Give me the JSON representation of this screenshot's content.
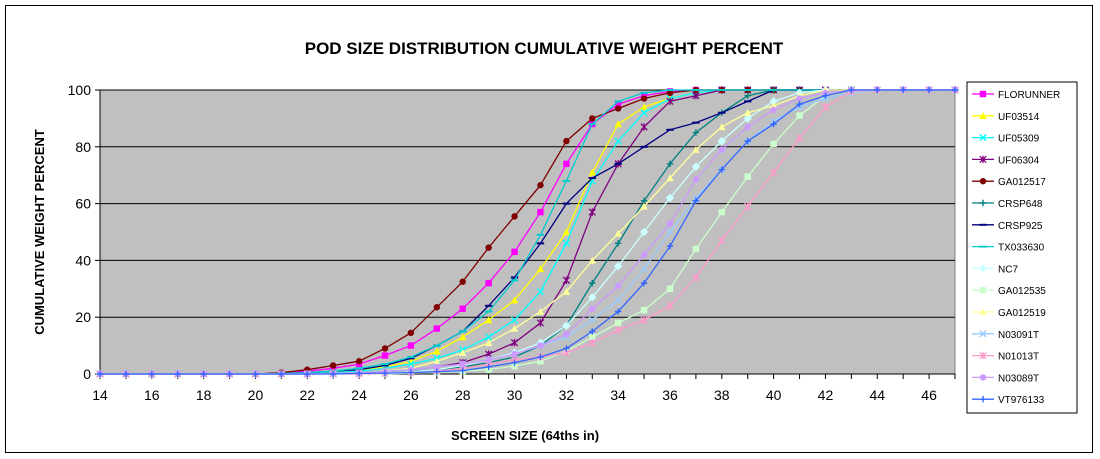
{
  "chart_data": {
    "type": "line",
    "title": "POD SIZE DISTRIBUTION CUMULATIVE WEIGHT PERCENT",
    "xlabel": "SCREEN SIZE (64ths in)",
    "ylabel": "CUMULATIVE WEIGHT PERCENT",
    "xlim": [
      14,
      47
    ],
    "ylim": [
      0,
      100
    ],
    "x_ticks": [
      14,
      16,
      18,
      20,
      22,
      24,
      26,
      28,
      30,
      32,
      34,
      36,
      38,
      40,
      42,
      44,
      46
    ],
    "y_ticks": [
      0,
      20,
      40,
      60,
      80,
      100
    ],
    "grid": "horizontal",
    "plot_background": "#c0c0c0",
    "legend_position": "right",
    "x": [
      14,
      15,
      16,
      17,
      18,
      19,
      20,
      21,
      22,
      23,
      24,
      25,
      26,
      27,
      28,
      29,
      30,
      31,
      32,
      33,
      34,
      35,
      36,
      37,
      38,
      39,
      40,
      41,
      42,
      43,
      44,
      45,
      46,
      47
    ],
    "series": [
      {
        "name": "FLORUNNER",
        "color": "#ff00ff",
        "marker": "square",
        "values": [
          0,
          0,
          0,
          0,
          0,
          0,
          0,
          0.3,
          1,
          2,
          3.5,
          6.5,
          10,
          16,
          23,
          32,
          43,
          57,
          74,
          88,
          95,
          98,
          99.5,
          100,
          100,
          100,
          100,
          100,
          100,
          100,
          100,
          100,
          100,
          100
        ]
      },
      {
        "name": "UF03514",
        "color": "#ffff00",
        "marker": "triangle",
        "values": [
          0,
          0,
          0,
          0,
          0,
          0,
          0,
          0,
          0.3,
          0.6,
          1.2,
          2.5,
          4.5,
          8,
          13,
          19,
          26,
          37,
          50,
          71,
          88,
          94,
          97,
          99,
          100,
          100,
          100,
          100,
          100,
          100,
          100,
          100,
          100,
          100
        ]
      },
      {
        "name": "UF05309",
        "color": "#00ffff",
        "marker": "x",
        "values": [
          0,
          0,
          0,
          0,
          0,
          0,
          0,
          0,
          0.2,
          0.5,
          1,
          2,
          3.5,
          5.5,
          8.5,
          13,
          19,
          29,
          46,
          68,
          82,
          92,
          97,
          99,
          100,
          100,
          100,
          100,
          100,
          100,
          100,
          100,
          100,
          100
        ]
      },
      {
        "name": "UF06304",
        "color": "#800080",
        "marker": "star",
        "values": [
          0,
          0,
          0,
          0,
          0,
          0,
          0,
          0,
          0,
          0.2,
          0.5,
          1,
          1.5,
          2.5,
          4,
          7,
          11,
          18,
          33,
          57,
          74,
          87,
          96,
          98,
          100,
          100,
          100,
          100,
          100,
          100,
          100,
          100,
          100,
          100
        ]
      },
      {
        "name": "GA012517",
        "color": "#800000",
        "marker": "circle",
        "values": [
          0,
          0,
          0,
          0,
          0,
          0,
          0,
          0.5,
          1.5,
          3,
          4.5,
          9,
          14.5,
          23.5,
          32.5,
          44.5,
          55.5,
          66.5,
          82,
          90,
          93.5,
          97,
          99,
          100,
          100,
          100,
          100,
          100,
          100,
          100,
          100,
          100,
          100,
          100
        ]
      },
      {
        "name": "CRSP648",
        "color": "#008080",
        "marker": "plus",
        "values": [
          0,
          0,
          0,
          0,
          0,
          0,
          0,
          0,
          0,
          0.2,
          0.3,
          0.5,
          1,
          1.5,
          2.5,
          4,
          6,
          10,
          17,
          32,
          46,
          61,
          74,
          85,
          92,
          98,
          100,
          100,
          100,
          100,
          100,
          100,
          100,
          100
        ]
      },
      {
        "name": "CRSP925",
        "color": "#000080",
        "marker": "dash",
        "values": [
          0,
          0,
          0,
          0,
          0,
          0,
          0,
          0.2,
          0.5,
          1,
          1.5,
          3,
          5.5,
          10,
          15,
          24,
          34,
          46,
          60,
          69,
          74,
          80,
          86,
          88.5,
          92,
          96,
          100,
          100,
          100,
          100,
          100,
          100,
          100,
          100
        ]
      },
      {
        "name": "TX033630",
        "color": "#00cccc",
        "marker": "dash",
        "values": [
          0,
          0,
          0,
          0,
          0,
          0,
          0,
          0.2,
          0.5,
          1,
          2,
          3.5,
          6,
          10,
          15,
          22,
          33,
          49,
          68,
          88,
          96,
          99,
          100,
          100,
          100,
          100,
          100,
          100,
          100,
          100,
          100,
          100,
          100,
          100
        ]
      },
      {
        "name": "NC7",
        "color": "#ccffff",
        "marker": "diamond",
        "values": [
          0,
          0,
          0,
          0,
          0,
          0,
          0,
          0,
          0,
          0,
          0.2,
          0.4,
          0.8,
          1.5,
          3,
          5,
          7.5,
          11,
          17,
          27,
          38,
          50,
          62,
          73,
          82,
          90,
          96,
          99,
          100,
          100,
          100,
          100,
          100,
          100
        ]
      },
      {
        "name": "GA012535",
        "color": "#ccffcc",
        "marker": "square",
        "values": [
          0,
          0,
          0,
          0,
          0,
          0,
          0,
          0,
          0,
          0,
          0,
          0,
          0.3,
          0.6,
          1,
          1.6,
          2.8,
          4.5,
          8,
          13,
          18,
          22.5,
          30,
          44,
          57,
          69.5,
          81,
          91,
          98,
          100,
          100,
          100,
          100,
          100
        ]
      },
      {
        "name": "GA012519",
        "color": "#ffff99",
        "marker": "triangle",
        "values": [
          0,
          0,
          0,
          0,
          0,
          0,
          0,
          0,
          0,
          0.2,
          0.5,
          1,
          2,
          4.5,
          7.5,
          11,
          16,
          22,
          29,
          40,
          49.5,
          59,
          69,
          79,
          87,
          92,
          94.5,
          98,
          100,
          100,
          100,
          100,
          100,
          100
        ]
      },
      {
        "name": "N03091T",
        "color": "#99ccff",
        "marker": "x",
        "values": [
          0,
          0,
          0,
          0,
          0,
          0,
          0,
          0,
          0,
          0.2,
          0.5,
          1,
          1.5,
          2.5,
          3.5,
          5,
          7,
          10,
          13,
          19,
          26,
          37,
          50,
          62,
          72,
          82,
          89,
          94,
          97,
          99,
          100,
          100,
          100,
          100
        ]
      },
      {
        "name": "N01013T",
        "color": "#ff99cc",
        "marker": "star",
        "values": [
          0,
          0,
          0,
          0,
          0,
          0,
          0,
          0,
          0,
          0,
          0,
          0.2,
          0.5,
          1,
          2,
          3.5,
          5,
          6,
          7.5,
          11,
          15.5,
          19,
          24,
          34,
          47,
          59,
          71,
          83,
          94,
          99.5,
          100,
          100,
          100,
          100
        ]
      },
      {
        "name": "N03089T",
        "color": "#cc99ff",
        "marker": "circle",
        "values": [
          0,
          0,
          0,
          0,
          0,
          0,
          0,
          0,
          0,
          0.2,
          0.4,
          0.8,
          1.5,
          2.5,
          3.5,
          5,
          7,
          10,
          14,
          23,
          31,
          42,
          53,
          68.5,
          79,
          87,
          93,
          97,
          99,
          100,
          100,
          100,
          100,
          100
        ]
      },
      {
        "name": "VT976133",
        "color": "#3366ff",
        "marker": "plus",
        "values": [
          0,
          0,
          0,
          0,
          0,
          0,
          0,
          0,
          0,
          0,
          0.2,
          0.3,
          0.5,
          0.8,
          1.2,
          2.5,
          4,
          6,
          9,
          15,
          22,
          32,
          45,
          61,
          72,
          82,
          88,
          95,
          98,
          100,
          100,
          100,
          100,
          100
        ]
      }
    ]
  }
}
